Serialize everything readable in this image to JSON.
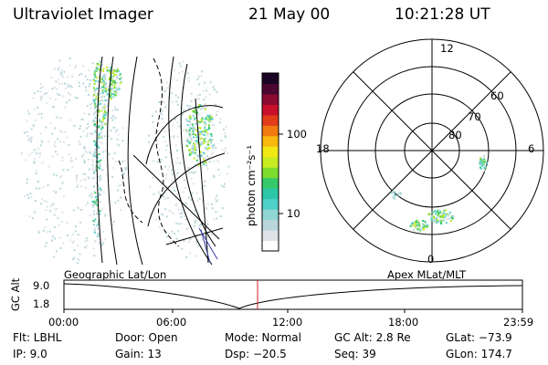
{
  "header": {
    "title": "Ultraviolet Imager",
    "date": "21 May 00",
    "time": "10:21:28 UT"
  },
  "colorbar": {
    "label": "photon cm⁻²s⁻¹",
    "ticks": [
      "100",
      "10"
    ],
    "colors": [
      "#ffffff",
      "#dfe3e8",
      "#b9d7db",
      "#8fd6d4",
      "#4fd0c8",
      "#2bc7a8",
      "#35c96a",
      "#7ddc2e",
      "#c8ec22",
      "#f2e814",
      "#f8b80e",
      "#f27a10",
      "#e23c1a",
      "#c8102a",
      "#8a0a30",
      "#4a0630",
      "#1a0424"
    ]
  },
  "polar_plot": {
    "labels_hour": [
      "12",
      "18",
      "6",
      "0"
    ],
    "labels_lat": [
      "60",
      "70",
      "80"
    ]
  },
  "altitude_plot": {
    "ylabel": "GC Alt",
    "yticks": [
      "9.0",
      "1.8"
    ],
    "left_title": "Geographic Lat/Lon",
    "right_title": "Apex MLat/MLT",
    "xticks": [
      "00:00",
      "06:00",
      "12:00",
      "18:00",
      "23:59"
    ],
    "marker_color": "#d42020"
  },
  "info": {
    "flt": "Flt: LBHL",
    "ip": "IP: 9.0",
    "door": "Door: Open",
    "gain": "Gain: 13",
    "mode": "Mode: Normal",
    "dsp": "Dsp: −20.5",
    "gcalt": "GC Alt: 2.8 Re",
    "seq": "Seq: 39",
    "glat": "GLat: −73.9",
    "glon": "GLon: 174.7"
  }
}
